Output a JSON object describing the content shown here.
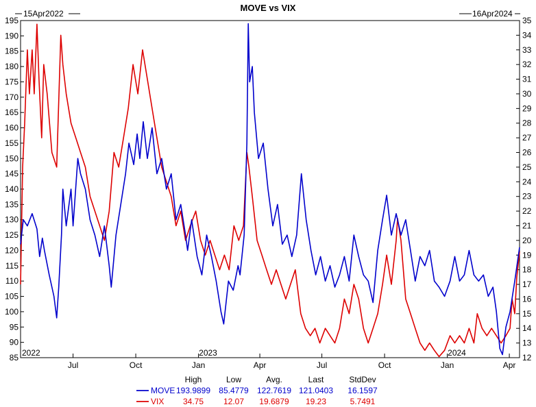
{
  "chart_data": {
    "type": "line",
    "title": "MOVE vs VIX",
    "start_label": "15Apr2022",
    "end_label": "16Apr2024",
    "x_range": [
      "2022-04-15",
      "2024-04-16"
    ],
    "x_ticks": [
      {
        "date": "2022-04-15",
        "label": "2022"
      },
      {
        "date": "2022-07-01",
        "label": "Jul"
      },
      {
        "date": "2022-10-01",
        "label": "Oct"
      },
      {
        "date": "2023-01-01",
        "label": "Jan"
      },
      {
        "date": "2023-01-15",
        "label": "2023"
      },
      {
        "date": "2023-04-01",
        "label": "Apr"
      },
      {
        "date": "2023-07-01",
        "label": "Jul"
      },
      {
        "date": "2023-10-01",
        "label": "Oct"
      },
      {
        "date": "2024-01-01",
        "label": "Jan"
      },
      {
        "date": "2024-01-15",
        "label": "2024"
      },
      {
        "date": "2024-04-01",
        "label": "Apr"
      }
    ],
    "left_axis": {
      "series": "MOVE",
      "ylim": [
        85,
        195
      ],
      "ticks": [
        85,
        90,
        95,
        100,
        105,
        110,
        115,
        120,
        125,
        130,
        135,
        140,
        145,
        150,
        155,
        160,
        165,
        170,
        175,
        180,
        185,
        190,
        195
      ]
    },
    "right_axis": {
      "series": "VIX",
      "ylim": [
        12,
        35
      ],
      "ticks": [
        12,
        13,
        14,
        15,
        16,
        17,
        18,
        19,
        20,
        21,
        22,
        23,
        24,
        25,
        26,
        27,
        28,
        29,
        30,
        31,
        32,
        33,
        34,
        35
      ]
    },
    "grid": false,
    "series": [
      {
        "name": "MOVE",
        "color": "#0000cc",
        "axis": "left",
        "points": [
          [
            "2022-04-15",
            122
          ],
          [
            "2022-04-19",
            130
          ],
          [
            "2022-04-25",
            128
          ],
          [
            "2022-05-02",
            132
          ],
          [
            "2022-05-09",
            127
          ],
          [
            "2022-05-13",
            118
          ],
          [
            "2022-05-17",
            124
          ],
          [
            "2022-05-20",
            120
          ],
          [
            "2022-05-27",
            112
          ],
          [
            "2022-06-03",
            105
          ],
          [
            "2022-06-07",
            98
          ],
          [
            "2022-06-10",
            108
          ],
          [
            "2022-06-14",
            125
          ],
          [
            "2022-06-16",
            140
          ],
          [
            "2022-06-21",
            128
          ],
          [
            "2022-06-28",
            140
          ],
          [
            "2022-07-01",
            128
          ],
          [
            "2022-07-08",
            150
          ],
          [
            "2022-07-12",
            145
          ],
          [
            "2022-07-19",
            140
          ],
          [
            "2022-07-26",
            130
          ],
          [
            "2022-08-02",
            125
          ],
          [
            "2022-08-09",
            118
          ],
          [
            "2022-08-16",
            128
          ],
          [
            "2022-08-23",
            115
          ],
          [
            "2022-08-26",
            108
          ],
          [
            "2022-09-02",
            125
          ],
          [
            "2022-09-09",
            135
          ],
          [
            "2022-09-16",
            145
          ],
          [
            "2022-09-21",
            155
          ],
          [
            "2022-09-28",
            148
          ],
          [
            "2022-10-03",
            158
          ],
          [
            "2022-10-07",
            150
          ],
          [
            "2022-10-12",
            162
          ],
          [
            "2022-10-18",
            150
          ],
          [
            "2022-10-25",
            160
          ],
          [
            "2022-11-01",
            145
          ],
          [
            "2022-11-08",
            150
          ],
          [
            "2022-11-15",
            140
          ],
          [
            "2022-11-22",
            145
          ],
          [
            "2022-11-29",
            130
          ],
          [
            "2022-12-06",
            135
          ],
          [
            "2022-12-13",
            125
          ],
          [
            "2022-12-16",
            120
          ],
          [
            "2022-12-22",
            130
          ],
          [
            "2022-12-30",
            118
          ],
          [
            "2023-01-06",
            112
          ],
          [
            "2023-01-13",
            125
          ],
          [
            "2023-01-20",
            118
          ],
          [
            "2023-01-27",
            110
          ],
          [
            "2023-02-03",
            100
          ],
          [
            "2023-02-07",
            96
          ],
          [
            "2023-02-14",
            110
          ],
          [
            "2023-02-21",
            107
          ],
          [
            "2023-02-28",
            115
          ],
          [
            "2023-03-03",
            112
          ],
          [
            "2023-03-09",
            125
          ],
          [
            "2023-03-13",
            155
          ],
          [
            "2023-03-15",
            194
          ],
          [
            "2023-03-17",
            175
          ],
          [
            "2023-03-21",
            180
          ],
          [
            "2023-03-24",
            165
          ],
          [
            "2023-03-30",
            150
          ],
          [
            "2023-04-06",
            155
          ],
          [
            "2023-04-13",
            140
          ],
          [
            "2023-04-20",
            128
          ],
          [
            "2023-04-27",
            135
          ],
          [
            "2023-05-04",
            122
          ],
          [
            "2023-05-11",
            125
          ],
          [
            "2023-05-18",
            118
          ],
          [
            "2023-05-25",
            125
          ],
          [
            "2023-06-01",
            145
          ],
          [
            "2023-06-08",
            130
          ],
          [
            "2023-06-15",
            120
          ],
          [
            "2023-06-22",
            112
          ],
          [
            "2023-06-29",
            118
          ],
          [
            "2023-07-06",
            110
          ],
          [
            "2023-07-13",
            115
          ],
          [
            "2023-07-20",
            108
          ],
          [
            "2023-07-27",
            112
          ],
          [
            "2023-08-03",
            118
          ],
          [
            "2023-08-10",
            110
          ],
          [
            "2023-08-17",
            125
          ],
          [
            "2023-08-24",
            118
          ],
          [
            "2023-08-31",
            112
          ],
          [
            "2023-09-07",
            110
          ],
          [
            "2023-09-14",
            103
          ],
          [
            "2023-09-21",
            120
          ],
          [
            "2023-09-28",
            130
          ],
          [
            "2023-10-04",
            138
          ],
          [
            "2023-10-11",
            125
          ],
          [
            "2023-10-18",
            132
          ],
          [
            "2023-10-25",
            125
          ],
          [
            "2023-11-01",
            130
          ],
          [
            "2023-11-08",
            120
          ],
          [
            "2023-11-15",
            110
          ],
          [
            "2023-11-22",
            118
          ],
          [
            "2023-11-29",
            115
          ],
          [
            "2023-12-06",
            120
          ],
          [
            "2023-12-13",
            110
          ],
          [
            "2023-12-20",
            108
          ],
          [
            "2023-12-28",
            105
          ],
          [
            "2024-01-05",
            110
          ],
          [
            "2024-01-12",
            118
          ],
          [
            "2024-01-19",
            110
          ],
          [
            "2024-01-26",
            112
          ],
          [
            "2024-02-02",
            120
          ],
          [
            "2024-02-09",
            112
          ],
          [
            "2024-02-16",
            110
          ],
          [
            "2024-02-23",
            112
          ],
          [
            "2024-03-01",
            105
          ],
          [
            "2024-03-08",
            108
          ],
          [
            "2024-03-13",
            100
          ],
          [
            "2024-03-18",
            88
          ],
          [
            "2024-03-22",
            86
          ],
          [
            "2024-03-27",
            95
          ],
          [
            "2024-04-02",
            100
          ],
          [
            "2024-04-09",
            110
          ],
          [
            "2024-04-16",
            121
          ]
        ]
      },
      {
        "name": "VIX",
        "color": "#dd0000",
        "axis": "right",
        "points": [
          [
            "2022-04-15",
            17
          ],
          [
            "2022-04-18",
            25
          ],
          [
            "2022-04-21",
            28
          ],
          [
            "2022-04-25",
            33
          ],
          [
            "2022-04-28",
            30
          ],
          [
            "2022-05-02",
            33
          ],
          [
            "2022-05-05",
            30
          ],
          [
            "2022-05-09",
            34.75
          ],
          [
            "2022-05-12",
            31
          ],
          [
            "2022-05-16",
            27
          ],
          [
            "2022-05-19",
            32
          ],
          [
            "2022-05-24",
            30
          ],
          [
            "2022-05-31",
            26
          ],
          [
            "2022-06-07",
            25
          ],
          [
            "2022-06-13",
            34
          ],
          [
            "2022-06-16",
            32
          ],
          [
            "2022-06-21",
            30
          ],
          [
            "2022-06-28",
            28
          ],
          [
            "2022-07-05",
            27
          ],
          [
            "2022-07-12",
            26
          ],
          [
            "2022-07-19",
            25
          ],
          [
            "2022-07-26",
            23
          ],
          [
            "2022-08-02",
            22
          ],
          [
            "2022-08-09",
            21
          ],
          [
            "2022-08-16",
            20
          ],
          [
            "2022-08-23",
            22
          ],
          [
            "2022-08-30",
            26
          ],
          [
            "2022-09-06",
            25
          ],
          [
            "2022-09-13",
            27
          ],
          [
            "2022-09-20",
            29
          ],
          [
            "2022-09-27",
            32
          ],
          [
            "2022-10-04",
            30
          ],
          [
            "2022-10-11",
            33
          ],
          [
            "2022-10-18",
            31
          ],
          [
            "2022-10-25",
            29
          ],
          [
            "2022-11-01",
            27
          ],
          [
            "2022-11-08",
            25
          ],
          [
            "2022-11-15",
            24
          ],
          [
            "2022-11-22",
            23
          ],
          [
            "2022-11-29",
            21
          ],
          [
            "2022-12-06",
            22
          ],
          [
            "2022-12-13",
            20
          ],
          [
            "2022-12-20",
            21
          ],
          [
            "2022-12-28",
            22
          ],
          [
            "2023-01-04",
            20
          ],
          [
            "2023-01-11",
            19
          ],
          [
            "2023-01-18",
            20
          ],
          [
            "2023-01-25",
            19
          ],
          [
            "2023-02-01",
            18
          ],
          [
            "2023-02-08",
            19
          ],
          [
            "2023-02-15",
            18
          ],
          [
            "2023-02-22",
            21
          ],
          [
            "2023-03-01",
            20
          ],
          [
            "2023-03-08",
            21
          ],
          [
            "2023-03-13",
            26
          ],
          [
            "2023-03-16",
            25
          ],
          [
            "2023-03-21",
            23
          ],
          [
            "2023-03-28",
            20
          ],
          [
            "2023-04-04",
            19
          ],
          [
            "2023-04-11",
            18
          ],
          [
            "2023-04-18",
            17
          ],
          [
            "2023-04-25",
            18
          ],
          [
            "2023-05-02",
            17
          ],
          [
            "2023-05-09",
            16
          ],
          [
            "2023-05-16",
            17
          ],
          [
            "2023-05-23",
            18
          ],
          [
            "2023-05-31",
            15
          ],
          [
            "2023-06-07",
            14
          ],
          [
            "2023-06-14",
            13.5
          ],
          [
            "2023-06-21",
            14
          ],
          [
            "2023-06-28",
            13
          ],
          [
            "2023-07-06",
            14
          ],
          [
            "2023-07-13",
            13.5
          ],
          [
            "2023-07-20",
            13
          ],
          [
            "2023-07-27",
            14
          ],
          [
            "2023-08-03",
            16
          ],
          [
            "2023-08-10",
            15
          ],
          [
            "2023-08-17",
            17
          ],
          [
            "2023-08-24",
            16
          ],
          [
            "2023-08-31",
            14
          ],
          [
            "2023-09-07",
            13
          ],
          [
            "2023-09-14",
            14
          ],
          [
            "2023-09-21",
            15
          ],
          [
            "2023-09-28",
            17
          ],
          [
            "2023-10-04",
            19
          ],
          [
            "2023-10-11",
            17
          ],
          [
            "2023-10-18",
            20
          ],
          [
            "2023-10-20",
            21.5
          ],
          [
            "2023-10-25",
            20
          ],
          [
            "2023-11-01",
            16
          ],
          [
            "2023-11-08",
            15
          ],
          [
            "2023-11-15",
            14
          ],
          [
            "2023-11-22",
            13
          ],
          [
            "2023-11-29",
            12.5
          ],
          [
            "2023-12-06",
            13
          ],
          [
            "2023-12-13",
            12.5
          ],
          [
            "2023-12-20",
            12.07
          ],
          [
            "2023-12-28",
            12.5
          ],
          [
            "2024-01-05",
            13.5
          ],
          [
            "2024-01-12",
            13
          ],
          [
            "2024-01-19",
            13.5
          ],
          [
            "2024-01-26",
            13
          ],
          [
            "2024-02-02",
            14
          ],
          [
            "2024-02-09",
            13
          ],
          [
            "2024-02-14",
            15
          ],
          [
            "2024-02-21",
            14
          ],
          [
            "2024-02-28",
            13.5
          ],
          [
            "2024-03-06",
            14
          ],
          [
            "2024-03-13",
            13.5
          ],
          [
            "2024-03-20",
            13
          ],
          [
            "2024-03-27",
            13.5
          ],
          [
            "2024-04-02",
            14
          ],
          [
            "2024-04-05",
            16
          ],
          [
            "2024-04-09",
            15
          ],
          [
            "2024-04-12",
            17.5
          ],
          [
            "2024-04-16",
            19.23
          ]
        ]
      }
    ],
    "stats": {
      "headers": [
        "High",
        "Low",
        "Avg.",
        "Last",
        "StdDev"
      ],
      "rows": [
        {
          "name": "MOVE",
          "color": "#0000cc",
          "values": [
            "193.9899",
            "85.4779",
            "122.7619",
            "121.0403",
            "16.1597"
          ]
        },
        {
          "name": "VIX",
          "color": "#dd0000",
          "values": [
            "34.75",
            "12.07",
            "19.6879",
            "19.23",
            "5.7491"
          ]
        }
      ]
    }
  }
}
